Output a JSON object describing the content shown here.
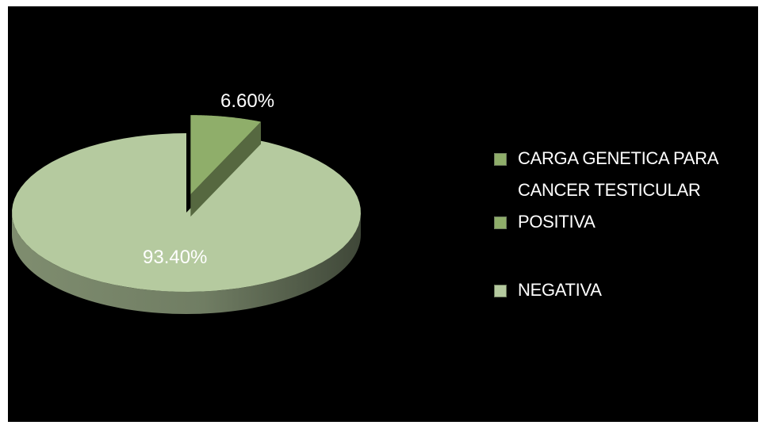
{
  "chart_data": {
    "type": "pie",
    "title": "CARGA GENETICA PARA CANCER TESTICULAR",
    "slices": [
      {
        "label": "POSITIVA",
        "value": 6.6,
        "value_label": "6.60%",
        "color": "#8fae6a",
        "exploded": true
      },
      {
        "label": "NEGATIVA",
        "value": 93.4,
        "value_label": "93.40%",
        "color": "#b5ca9f",
        "exploded": false
      }
    ],
    "legend_position": "right",
    "style": "3d"
  },
  "colors": {
    "background": "#000000",
    "positiva": "#8fae6a",
    "negativa": "#b5ca9f",
    "label_text": "#ffffff"
  }
}
